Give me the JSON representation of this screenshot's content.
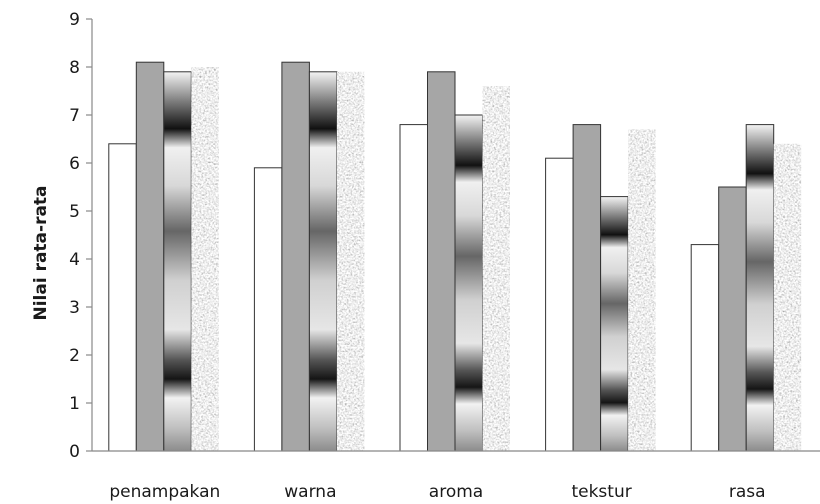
{
  "chart_data": {
    "type": "bar",
    "title": "",
    "xlabel": "",
    "ylabel": "Nilai rata-rata",
    "ylim": [
      0,
      9
    ],
    "yticks": [
      "0",
      "1",
      "2",
      "3",
      "4",
      "5",
      "6",
      "7",
      "8",
      "9"
    ],
    "grid": false,
    "categories": [
      "penampakan",
      "warna",
      "aroma",
      "tekstur",
      "rasa"
    ],
    "series": [
      {
        "values": [
          6.4,
          5.9,
          6.8,
          6.1,
          4.3
        ],
        "fill": "white"
      },
      {
        "values": [
          8.1,
          8.1,
          7.9,
          6.8,
          5.5
        ],
        "fill": "gray"
      },
      {
        "values": [
          7.9,
          7.9,
          7.0,
          5.3,
          6.8
        ],
        "fill": "banded-gradient"
      },
      {
        "values": [
          8.0,
          7.9,
          7.6,
          6.7,
          6.4
        ],
        "fill": "granite-texture"
      }
    ]
  }
}
